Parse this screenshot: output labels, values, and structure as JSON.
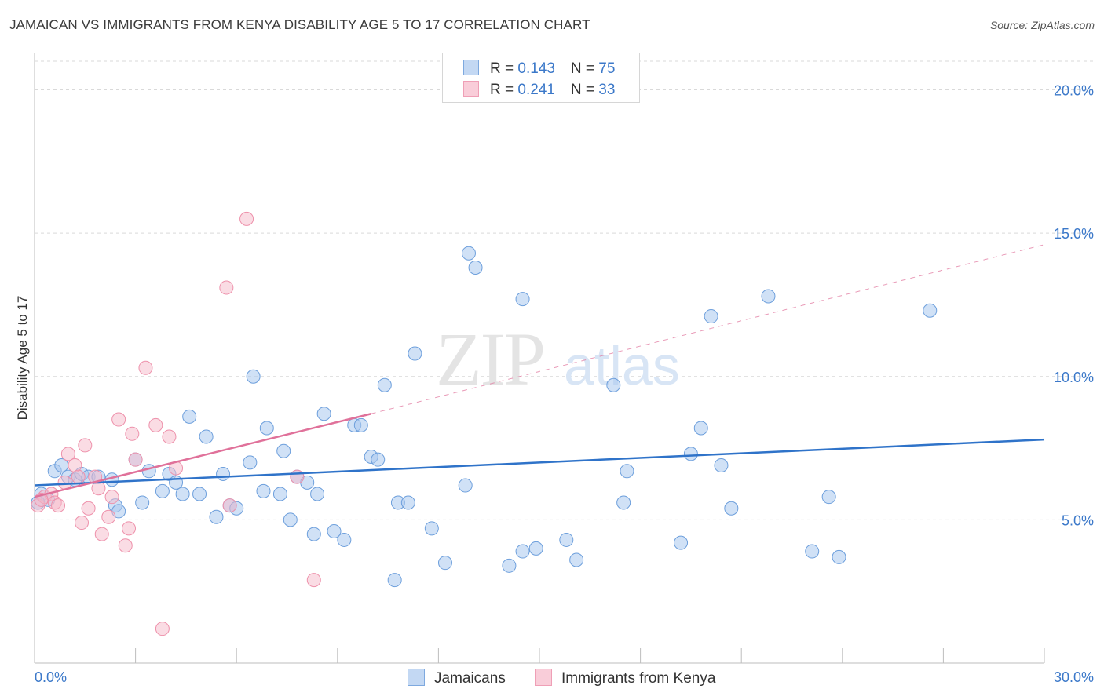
{
  "header": {
    "title": "JAMAICAN VS IMMIGRANTS FROM KENYA DISABILITY AGE 5 TO 17 CORRELATION CHART",
    "source": "Source: ZipAtlas.com"
  },
  "watermark": {
    "zip": "ZIP",
    "atlas": "atlas"
  },
  "legend": {
    "rows": [
      {
        "r_label": "R = ",
        "r_value": "0.143",
        "n_label": "N = ",
        "n_value": "75"
      },
      {
        "r_label": "R = ",
        "r_value": "0.241",
        "n_label": "N = ",
        "n_value": "33"
      }
    ]
  },
  "bottom_legend": [
    "Jamaicans",
    "Immigrants from Kenya"
  ],
  "colors": {
    "blue_fill": "#aac8ee",
    "blue_stroke": "#6d9fdc",
    "blue_line": "#2f73c9",
    "pink_fill": "#f6b9ca",
    "pink_stroke": "#ee91ab",
    "pink_line": "#e0719a",
    "tick_text": "#3b78c9",
    "grid": "#d9d9d9"
  },
  "chart_data": {
    "type": "scatter",
    "title": "JAMAICAN VS IMMIGRANTS FROM KENYA DISABILITY AGE 5 TO 17 CORRELATION CHART",
    "xlabel": "",
    "ylabel": "Disability Age 5 to 17",
    "xlim": [
      0,
      30
    ],
    "ylim": [
      0,
      21
    ],
    "x_tick_labels": [
      "0.0%",
      "30.0%"
    ],
    "y_ticks": [
      5,
      10,
      15,
      20
    ],
    "y_tick_labels": [
      "5.0%",
      "10.0%",
      "15.0%",
      "20.0%"
    ],
    "grid": "horizontal dashed",
    "legend_position": "top-center",
    "series": [
      {
        "name": "Jamaicans",
        "color": "#aac8ee",
        "trend": {
          "x": [
            0,
            30
          ],
          "y": [
            6.2,
            7.8
          ],
          "style": "solid"
        },
        "points": [
          [
            0.2,
            5.9
          ],
          [
            0.4,
            5.7
          ],
          [
            0.6,
            6.7
          ],
          [
            0.8,
            6.9
          ],
          [
            1.0,
            6.5
          ],
          [
            1.2,
            6.4
          ],
          [
            1.4,
            6.6
          ],
          [
            1.6,
            6.5
          ],
          [
            1.9,
            6.5
          ],
          [
            2.3,
            6.4
          ],
          [
            2.4,
            5.5
          ],
          [
            2.5,
            5.3
          ],
          [
            3.0,
            7.1
          ],
          [
            3.2,
            5.6
          ],
          [
            3.4,
            6.7
          ],
          [
            3.8,
            6.0
          ],
          [
            4.0,
            6.6
          ],
          [
            4.2,
            6.3
          ],
          [
            4.4,
            5.9
          ],
          [
            4.6,
            8.6
          ],
          [
            4.9,
            5.9
          ],
          [
            5.1,
            7.9
          ],
          [
            5.4,
            5.1
          ],
          [
            5.6,
            6.6
          ],
          [
            5.8,
            5.5
          ],
          [
            6.0,
            5.4
          ],
          [
            6.4,
            7.0
          ],
          [
            6.5,
            10.0
          ],
          [
            6.8,
            6.0
          ],
          [
            6.9,
            8.2
          ],
          [
            7.3,
            5.9
          ],
          [
            7.4,
            7.4
          ],
          [
            7.6,
            5.0
          ],
          [
            7.8,
            6.5
          ],
          [
            8.1,
            6.3
          ],
          [
            8.3,
            4.5
          ],
          [
            8.4,
            5.9
          ],
          [
            8.6,
            8.7
          ],
          [
            8.9,
            4.6
          ],
          [
            9.2,
            4.3
          ],
          [
            9.5,
            8.3
          ],
          [
            9.7,
            8.3
          ],
          [
            10.0,
            7.2
          ],
          [
            10.2,
            7.1
          ],
          [
            10.4,
            9.7
          ],
          [
            10.7,
            2.9
          ],
          [
            10.8,
            5.6
          ],
          [
            11.1,
            5.6
          ],
          [
            11.3,
            10.8
          ],
          [
            11.8,
            4.7
          ],
          [
            12.2,
            3.5
          ],
          [
            12.8,
            6.2
          ],
          [
            12.9,
            14.3
          ],
          [
            13.1,
            13.8
          ],
          [
            14.1,
            3.4
          ],
          [
            14.5,
            3.9
          ],
          [
            14.5,
            12.7
          ],
          [
            14.9,
            4.0
          ],
          [
            15.8,
            4.3
          ],
          [
            16.1,
            3.6
          ],
          [
            17.2,
            9.7
          ],
          [
            17.5,
            5.6
          ],
          [
            17.6,
            6.7
          ],
          [
            19.2,
            4.2
          ],
          [
            19.5,
            7.3
          ],
          [
            19.8,
            8.2
          ],
          [
            20.1,
            12.1
          ],
          [
            20.4,
            6.9
          ],
          [
            20.7,
            5.4
          ],
          [
            21.8,
            12.8
          ],
          [
            23.1,
            3.9
          ],
          [
            23.6,
            5.8
          ],
          [
            23.9,
            3.7
          ],
          [
            26.6,
            12.3
          ],
          [
            0.1,
            5.6
          ]
        ]
      },
      {
        "name": "Immigrants from Kenya",
        "color": "#f6b9ca",
        "trend": {
          "x": [
            0,
            10
          ],
          "y": [
            5.8,
            8.7
          ],
          "style": "solid",
          "extended": {
            "x": [
              10,
              30
            ],
            "y": [
              8.7,
              14.6
            ],
            "style": "dashed"
          }
        },
        "points": [
          [
            0.1,
            5.5
          ],
          [
            0.3,
            5.8
          ],
          [
            0.5,
            5.9
          ],
          [
            0.6,
            5.6
          ],
          [
            0.7,
            5.5
          ],
          [
            0.9,
            6.3
          ],
          [
            1.0,
            7.3
          ],
          [
            1.2,
            6.9
          ],
          [
            1.3,
            6.5
          ],
          [
            1.4,
            4.9
          ],
          [
            1.5,
            7.6
          ],
          [
            1.6,
            5.4
          ],
          [
            1.8,
            6.5
          ],
          [
            1.9,
            6.1
          ],
          [
            2.0,
            4.5
          ],
          [
            2.2,
            5.1
          ],
          [
            2.3,
            5.8
          ],
          [
            2.5,
            8.5
          ],
          [
            2.7,
            4.1
          ],
          [
            2.8,
            4.7
          ],
          [
            2.9,
            8.0
          ],
          [
            3.0,
            7.1
          ],
          [
            3.3,
            10.3
          ],
          [
            3.6,
            8.3
          ],
          [
            3.8,
            1.2
          ],
          [
            4.0,
            7.9
          ],
          [
            4.2,
            6.8
          ],
          [
            5.7,
            13.1
          ],
          [
            5.8,
            5.5
          ],
          [
            6.3,
            15.5
          ],
          [
            7.8,
            6.5
          ],
          [
            8.3,
            2.9
          ],
          [
            0.2,
            5.7
          ]
        ]
      }
    ]
  }
}
